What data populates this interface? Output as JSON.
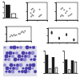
{
  "chart_data": [
    {
      "type": "bar",
      "categories": [
        null,
        null
      ],
      "values": [
        95,
        30
      ],
      "colors": [
        "#1a1a1a",
        "#ffffff"
      ],
      "ylim": [
        0,
        120
      ],
      "yticks": [
        0,
        40,
        80,
        120
      ],
      "tick_labels": false
    },
    {
      "type": "scatter",
      "x": [
        20,
        25,
        30,
        22,
        28,
        35,
        60,
        65,
        70,
        62,
        18,
        32
      ],
      "y": [
        20,
        30,
        25,
        60,
        65,
        55,
        20,
        25,
        30,
        60,
        40,
        45
      ],
      "xlim": [
        0,
        100
      ],
      "ylim": [
        0,
        100
      ],
      "xticks": [
        0,
        50,
        100
      ],
      "yticks": [
        0,
        50,
        100
      ],
      "color": "#8a8a8a",
      "tick_labels": false
    },
    {
      "type": "scatter",
      "x": [
        22,
        27,
        33,
        24,
        30,
        38,
        58,
        66,
        72,
        64,
        45,
        50
      ],
      "y": [
        22,
        28,
        24,
        62,
        68,
        58,
        24,
        28,
        34,
        66,
        40,
        50
      ],
      "xlim": [
        0,
        100
      ],
      "ylim": [
        0,
        100
      ],
      "xticks": [
        0,
        50,
        100
      ],
      "yticks": [
        0,
        50,
        100
      ],
      "color": "#8a8a8a",
      "tick_labels": false
    },
    {
      "type": "scatter",
      "x": [
        15,
        20,
        25,
        30,
        35,
        40,
        60,
        65,
        70,
        75,
        50,
        55
      ],
      "y": [
        30,
        40,
        35,
        45,
        38,
        42,
        60,
        65,
        58,
        70,
        50,
        48
      ],
      "xlim": [
        0,
        100
      ],
      "ylim": [
        0,
        100
      ],
      "xticks": [
        0,
        50,
        100
      ],
      "yticks": [
        0,
        50,
        100
      ],
      "color": "#8a8a8a",
      "tick_labels": false
    },
    {
      "type": "scatter",
      "x": [
        1,
        1,
        1,
        1,
        2,
        2,
        2,
        2,
        3,
        3,
        3,
        4,
        4,
        4
      ],
      "y": [
        70,
        62,
        75,
        66,
        30,
        25,
        35,
        28,
        55,
        60,
        50,
        20,
        15,
        24
      ],
      "xlim": [
        0.5,
        4.5
      ],
      "ylim": [
        0,
        100
      ],
      "xticks": [
        1,
        2,
        3,
        4
      ],
      "yticks": [
        0,
        50,
        100
      ],
      "color": "#333333",
      "tick_labels": false
    },
    {
      "type": "bar",
      "categories": [
        null,
        null,
        null,
        null
      ],
      "values": [
        80,
        20,
        70,
        25
      ],
      "colors": [
        "#1a1a1a",
        "#ffffff",
        "#1a1a1a",
        "#ffffff"
      ],
      "ylim": [
        0,
        100
      ],
      "yticks": [
        0,
        50,
        100
      ],
      "tick_labels": false
    },
    {
      "type": "bar",
      "categories": [
        null,
        null,
        null,
        null
      ],
      "values": [
        60,
        15,
        55,
        50
      ],
      "colors": [
        "#1a1a1a",
        "#ffffff",
        "#1a1a1a",
        "#ffffff"
      ],
      "ylim": [
        0,
        100
      ],
      "yticks": [
        0,
        50,
        100
      ],
      "tick_labels": false
    }
  ]
}
